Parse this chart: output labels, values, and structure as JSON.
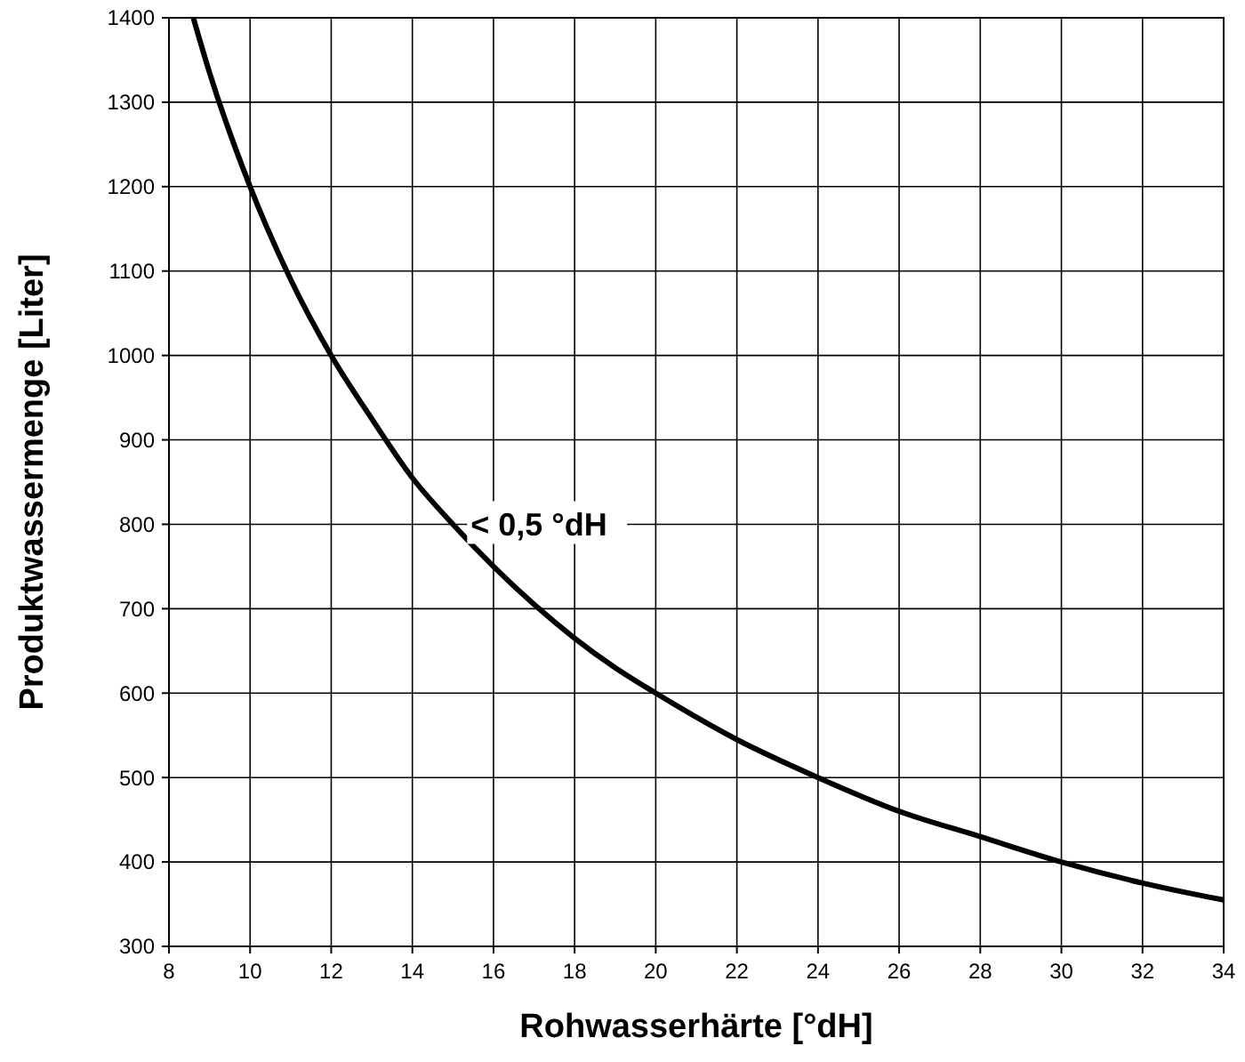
{
  "chart_data": {
    "type": "line",
    "xlabel": "Rohwasserhärte [°dH]",
    "ylabel": "Produktwassermenge [Liter]",
    "x": [
      8.6,
      9,
      10,
      11,
      12,
      13,
      14,
      15,
      16,
      17,
      18,
      19,
      20,
      22,
      24,
      26,
      28,
      30,
      32,
      34
    ],
    "series": [
      {
        "color": "#000000",
        "values": [
          1400,
          1335,
          1200,
          1090,
          1000,
          925,
          855,
          800,
          750,
          705,
          665,
          630,
          600,
          545,
          500,
          460,
          430,
          400,
          375,
          355
        ]
      }
    ],
    "xlim": [
      8,
      34
    ],
    "xticks": [
      8,
      10,
      12,
      14,
      16,
      18,
      20,
      22,
      24,
      26,
      28,
      30,
      32,
      34
    ],
    "ylim": [
      300,
      1400
    ],
    "yticks": [
      300,
      400,
      500,
      600,
      700,
      800,
      900,
      1000,
      1100,
      1200,
      1300,
      1400
    ],
    "grid": true,
    "marker": "none",
    "line_style": "solid",
    "annotations": [
      {
        "text": "< 0,5 °dH",
        "x": 15,
        "y": 800
      }
    ]
  }
}
